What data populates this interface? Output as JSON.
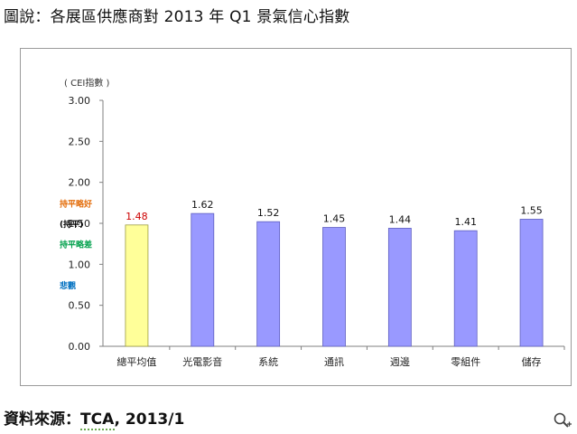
{
  "heading": "圖說：各展區供應商對 2013 年 Q1 景氣信心指數",
  "source": {
    "prefix": "資料來源：",
    "org": "TCA",
    "date": ", 2013/1"
  },
  "icons": {
    "zoom": "zoom-in-icon"
  },
  "chart_data": {
    "type": "bar",
    "ylabel": "( CEI指數 )",
    "ylim": [
      0,
      3
    ],
    "yticks": [
      "0.00",
      "0.50",
      "1.00",
      "1.50",
      "2.00",
      "2.50",
      "3.00"
    ],
    "categories": [
      "總平均值",
      "光電影音",
      "系統",
      "通訊",
      "週邊",
      "零組件",
      "儲存"
    ],
    "values": [
      1.48,
      1.62,
      1.52,
      1.45,
      1.44,
      1.41,
      1.55
    ],
    "value_labels": [
      "1.48",
      "1.62",
      "1.52",
      "1.45",
      "1.44",
      "1.41",
      "1.55"
    ],
    "bar_colors": [
      "#ffff99",
      "#9999ff",
      "#9999ff",
      "#9999ff",
      "#9999ff",
      "#9999ff",
      "#9999ff"
    ],
    "highlight_label_color": "#cc0000",
    "grid": false,
    "side_labels": [
      {
        "text": "持平略好",
        "y": 1.75,
        "color": "#e36c09",
        "bold": true
      },
      {
        "text": "(持平)",
        "y": 1.5,
        "color": "#000000",
        "bold": true
      },
      {
        "text": "持平略差",
        "y": 1.25,
        "color": "#00a04b",
        "bold": true
      },
      {
        "text": "悲觀",
        "y": 0.75,
        "color": "#0070c0",
        "bold": true
      }
    ]
  }
}
